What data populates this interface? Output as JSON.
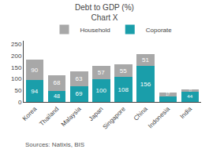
{
  "chart_data": {
    "type": "bar",
    "title": "Chart X",
    "subtitle": "Debt to GDP (%)",
    "categories": [
      "Korea",
      "Thailand",
      "Malaysia",
      "Japan",
      "Singapore",
      "China",
      "Indonesia",
      "India"
    ],
    "series": [
      {
        "name": "Coporate",
        "color": "#1a9eaa",
        "values": [
          94,
          48,
          69,
          100,
          108,
          156,
          23,
          44
        ]
      },
      {
        "name": "Household",
        "color": "#a8a8a8",
        "values": [
          90,
          68,
          63,
          57,
          55,
          51,
          17,
          11
        ]
      }
    ],
    "stacked": true,
    "data_labels": true,
    "ylim": [
      0,
      265
    ],
    "yticks": [
      0,
      50,
      100,
      150,
      200,
      250
    ],
    "grid": false,
    "legend": "top",
    "annotations": [
      {
        "text": "Sources: Natixis, BIS"
      }
    ]
  }
}
